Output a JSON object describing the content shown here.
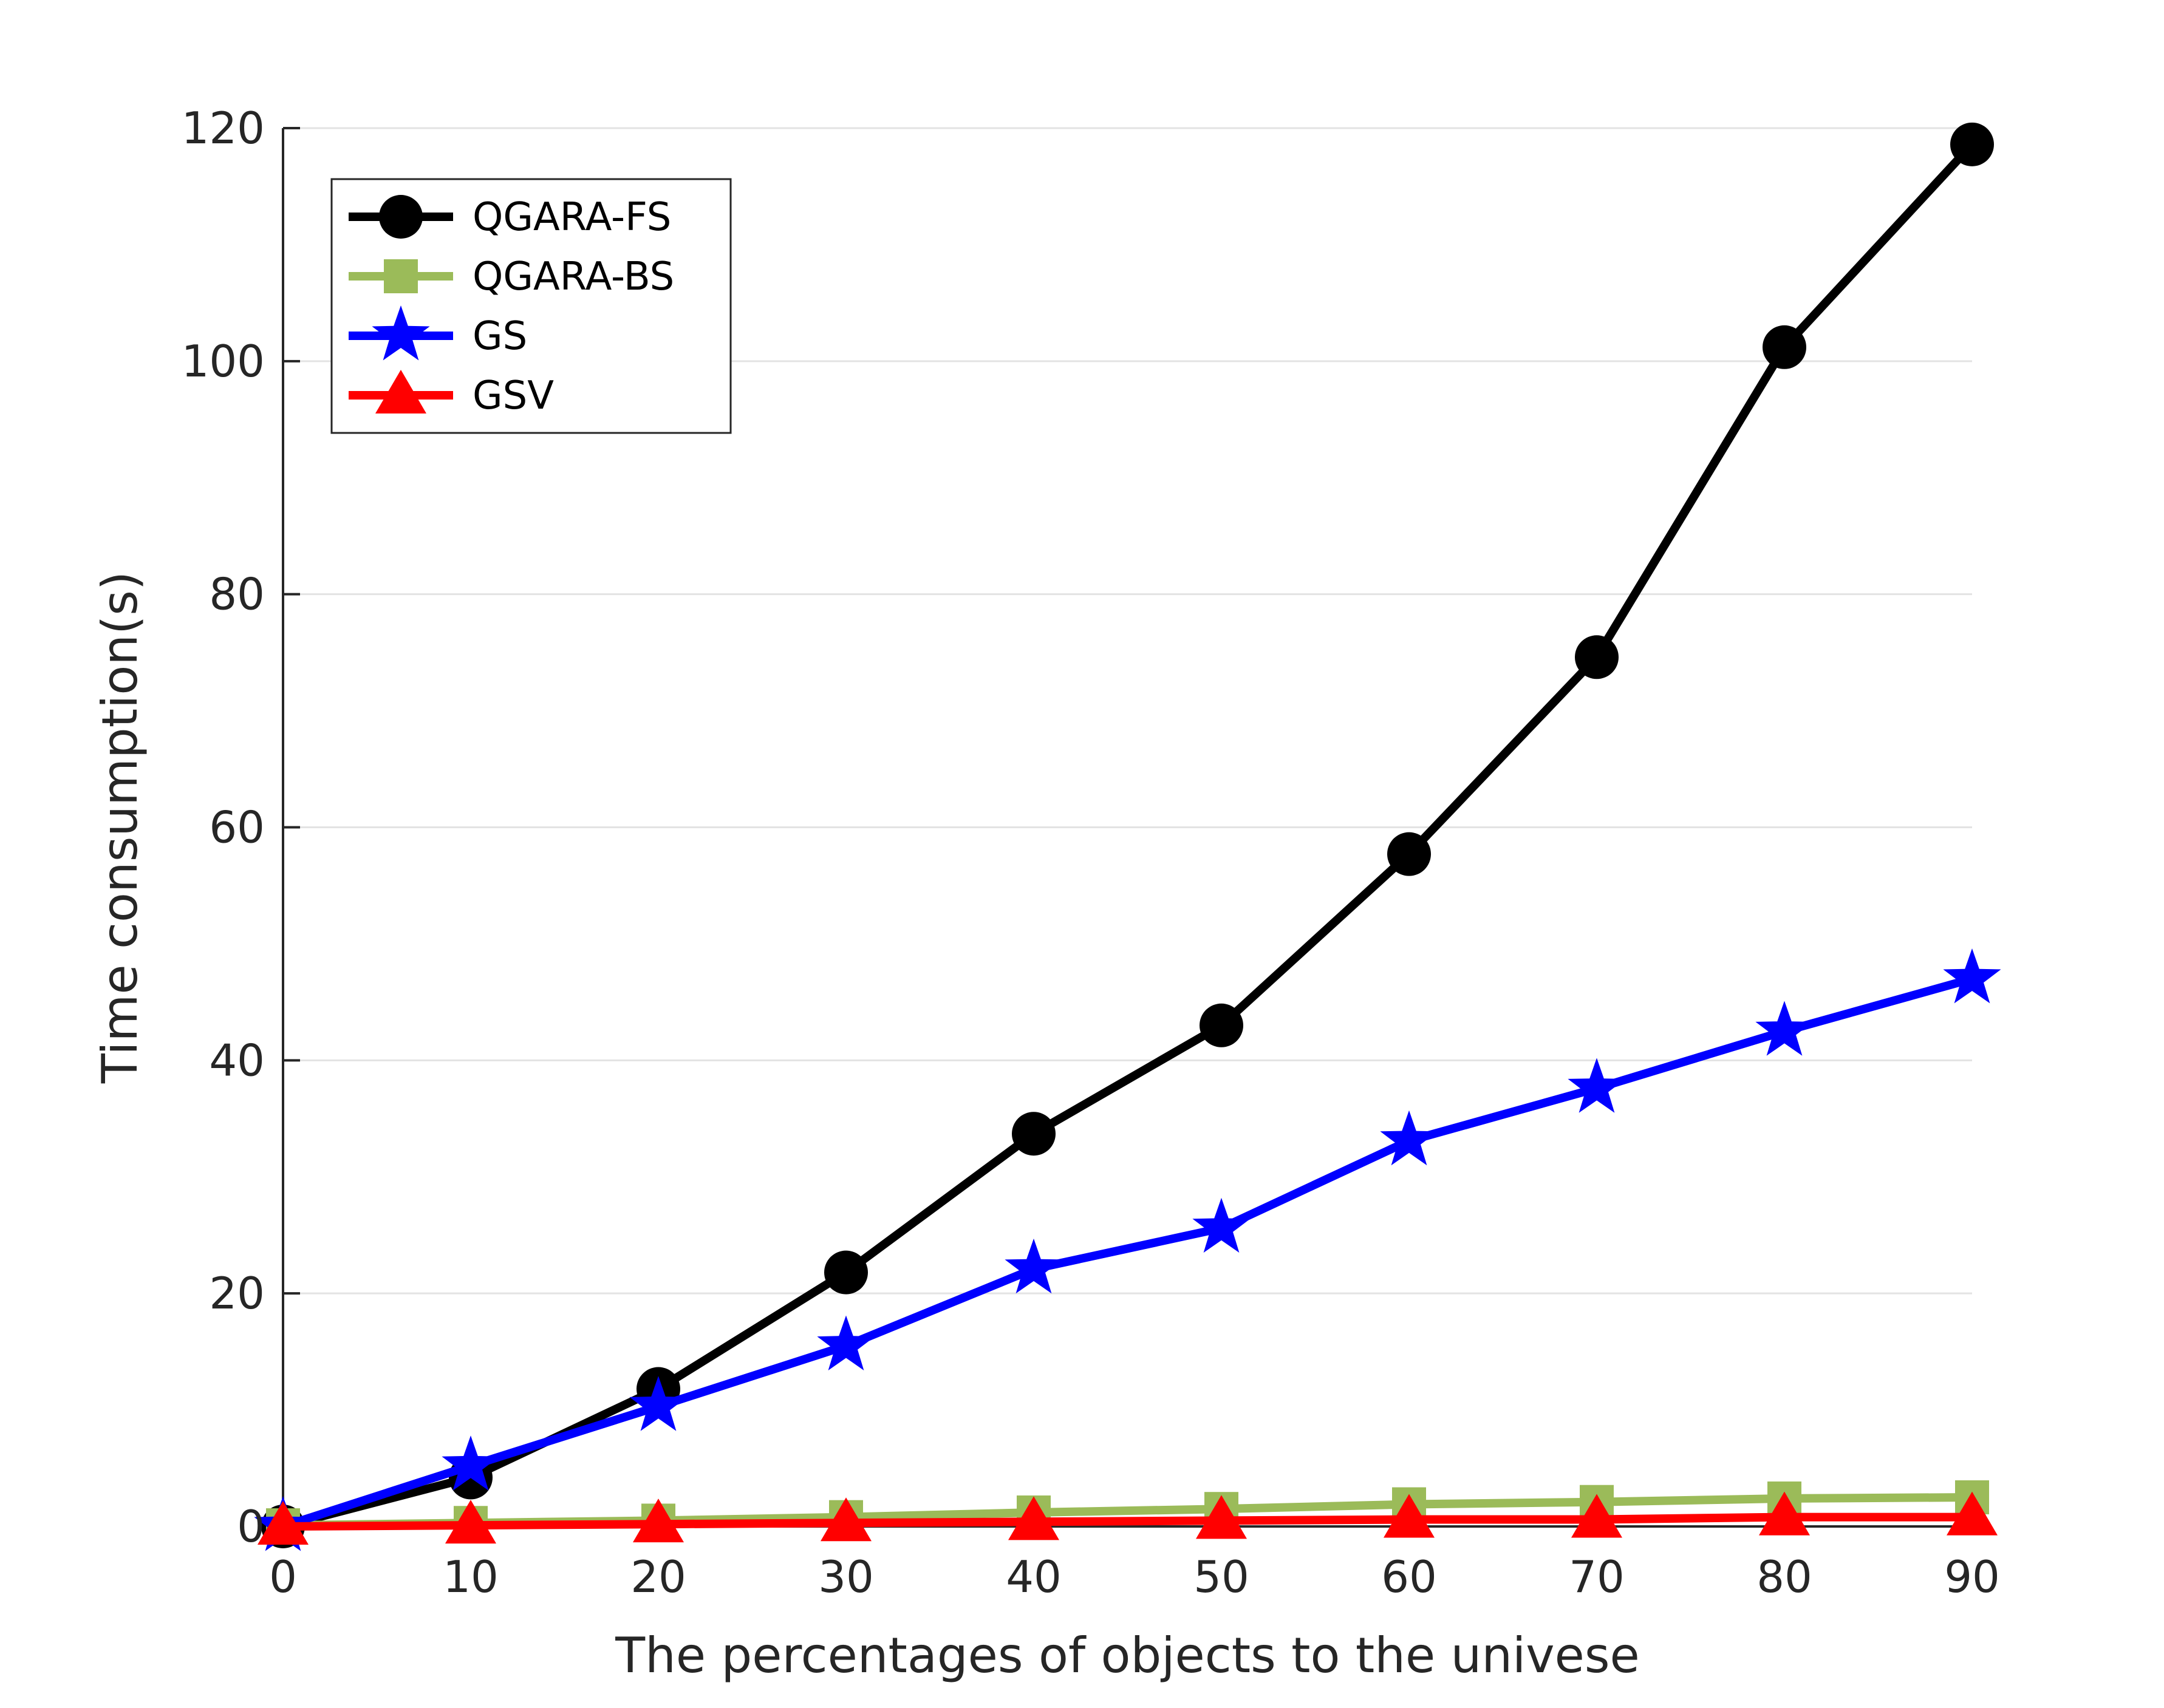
{
  "chart_data": {
    "type": "line",
    "title": "",
    "xlabel": "The percentages of objects to the univese",
    "ylabel": "Time consumption(s)",
    "xlim": [
      0,
      90
    ],
    "ylim": [
      0,
      120
    ],
    "xticks": [
      "0",
      "10",
      "20",
      "30",
      "40",
      "50",
      "60",
      "70",
      "80",
      "90"
    ],
    "yticks": [
      "0",
      "20",
      "40",
      "60",
      "80",
      "100",
      "120"
    ],
    "grid": "horizontal",
    "legend_position": "top-left",
    "x": [
      0,
      10,
      20,
      30,
      40,
      50,
      60,
      70,
      80,
      90
    ],
    "series": [
      {
        "name": "QGARA-FS",
        "color": "#000000",
        "marker": "circle",
        "values": [
          0.0,
          4.2,
          11.8,
          21.8,
          33.7,
          43.0,
          57.7,
          74.6,
          101.2,
          118.6
        ]
      },
      {
        "name": "QGARA-BS",
        "color": "#9BBB59",
        "marker": "square",
        "values": [
          0.1,
          0.3,
          0.5,
          0.8,
          1.2,
          1.5,
          1.9,
          2.1,
          2.4,
          2.5
        ]
      },
      {
        "name": "GS",
        "color": "#0000FF",
        "marker": "star",
        "values": [
          0.0,
          5.2,
          10.3,
          15.5,
          22.1,
          25.6,
          33.1,
          37.6,
          42.5,
          47.0
        ]
      },
      {
        "name": "GSV",
        "color": "#FF0000",
        "marker": "triangle",
        "values": [
          0.0,
          0.1,
          0.2,
          0.3,
          0.4,
          0.5,
          0.6,
          0.6,
          0.8,
          0.8
        ]
      }
    ]
  }
}
